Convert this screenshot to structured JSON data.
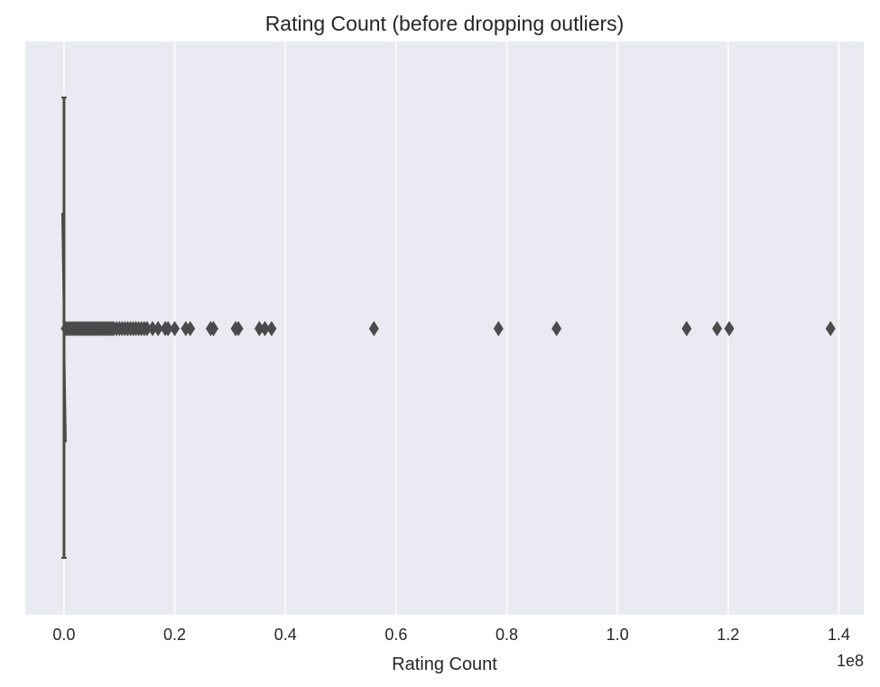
{
  "chart_data": {
    "type": "boxplot",
    "orientation": "horizontal",
    "title": "Rating Count (before dropping outliers)",
    "xlabel": "Rating Count",
    "ylabel": "",
    "x_offset_label": "1e8",
    "xlim": [
      -0.07,
      1.445
    ],
    "x_ticks": [
      0.0,
      0.2,
      0.4,
      0.6,
      0.8,
      1.0,
      1.2,
      1.4
    ],
    "x_tick_labels": [
      "0.0",
      "0.2",
      "0.4",
      "0.6",
      "0.8",
      "1.0",
      "1.2",
      "1.4"
    ],
    "x_unit_multiplier": 100000000,
    "grid": "vertical",
    "box": {
      "q1": 0.0,
      "median": 0.0,
      "q3": 0.0,
      "whisker_low": 0.0,
      "whisker_high": 0.0
    },
    "outliers": [
      0.003,
      0.006,
      0.009,
      0.012,
      0.015,
      0.018,
      0.021,
      0.024,
      0.027,
      0.03,
      0.033,
      0.036,
      0.039,
      0.042,
      0.045,
      0.048,
      0.051,
      0.054,
      0.057,
      0.06,
      0.063,
      0.066,
      0.069,
      0.072,
      0.075,
      0.078,
      0.081,
      0.084,
      0.087,
      0.09,
      0.095,
      0.1,
      0.105,
      0.11,
      0.115,
      0.12,
      0.125,
      0.13,
      0.135,
      0.14,
      0.145,
      0.15,
      0.16,
      0.17,
      0.183,
      0.188,
      0.2,
      0.22,
      0.228,
      0.265,
      0.27,
      0.31,
      0.315,
      0.353,
      0.363,
      0.375,
      0.56,
      0.785,
      0.89,
      1.125,
      1.18,
      1.202,
      1.385
    ],
    "colors": {
      "plot_background": "#eaeaf2",
      "grid": "#ffffff",
      "marks": "#4a4a4a",
      "text": "#262626"
    }
  }
}
